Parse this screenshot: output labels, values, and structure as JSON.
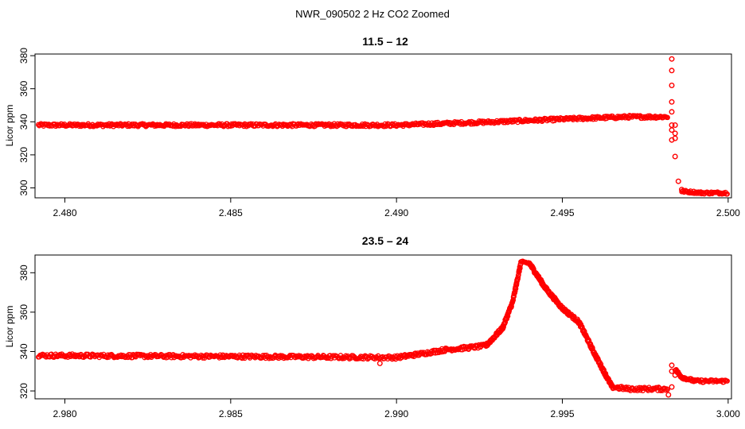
{
  "figure": {
    "title": "NWR_090502  2 Hz CO2 Zoomed"
  },
  "colors": {
    "points": "#ff0000",
    "axis": "#000000",
    "background": "#ffffff"
  },
  "chart_data": [
    {
      "type": "scatter",
      "title": "11.5 – 12",
      "xlabel": "",
      "ylabel": "Licor ppm",
      "xlim": [
        2.4791,
        2.5001
      ],
      "ylim": [
        294,
        381
      ],
      "xticks": [
        {
          "value": 2.48,
          "label": "2.480"
        },
        {
          "value": 2.485,
          "label": "2.485"
        },
        {
          "value": 2.49,
          "label": "2.490"
        },
        {
          "value": 2.495,
          "label": "2.495"
        },
        {
          "value": 2.5,
          "label": "2.500"
        }
      ],
      "yticks": [
        {
          "value": 300,
          "label": "300"
        },
        {
          "value": 320,
          "label": "320"
        },
        {
          "value": 340,
          "label": "340"
        },
        {
          "value": 360,
          "label": "360"
        },
        {
          "value": 380,
          "label": "380"
        }
      ],
      "series": [
        {
          "marker": "open-circle",
          "color": "#ff0000",
          "trend": [
            [
              2.4792,
              338
            ],
            [
              2.485,
              338
            ],
            [
              2.49,
              338
            ],
            [
              2.493,
              340
            ],
            [
              2.4955,
              342
            ],
            [
              2.497,
              343
            ],
            [
              2.4982,
              343
            ]
          ],
          "points": [
            [
              2.4983,
              378
            ],
            [
              2.4983,
              371
            ],
            [
              2.4983,
              362
            ],
            [
              2.4983,
              352
            ],
            [
              2.4983,
              346
            ],
            [
              2.4983,
              338
            ],
            [
              2.4983,
              335
            ],
            [
              2.4983,
              329
            ],
            [
              2.4984,
              338
            ],
            [
              2.4984,
              333
            ],
            [
              2.4984,
              330
            ],
            [
              2.4984,
              319
            ],
            [
              2.4985,
              304
            ],
            [
              2.4986,
              299
            ]
          ],
          "trend2": [
            [
              2.4986,
              298
            ],
            [
              2.4992,
              297
            ],
            [
              2.5,
              297
            ]
          ]
        }
      ]
    },
    {
      "type": "scatter",
      "title": "23.5 – 24",
      "xlabel": "",
      "ylabel": "Licor ppm",
      "xlim": [
        2.9791,
        3.0001
      ],
      "ylim": [
        316,
        389
      ],
      "xticks": [
        {
          "value": 2.98,
          "label": "2.980"
        },
        {
          "value": 2.985,
          "label": "2.985"
        },
        {
          "value": 2.99,
          "label": "2.990"
        },
        {
          "value": 2.995,
          "label": "2.995"
        },
        {
          "value": 3.0,
          "label": "3.000"
        }
      ],
      "yticks": [
        {
          "value": 320,
          "label": "320"
        },
        {
          "value": 340,
          "label": "340"
        },
        {
          "value": 360,
          "label": "360"
        },
        {
          "value": 380,
          "label": "380"
        }
      ],
      "series": [
        {
          "marker": "open-circle",
          "color": "#ff0000",
          "trend": [
            [
              2.9792,
              338
            ],
            [
              2.985,
              337.5
            ],
            [
              2.99,
              337
            ],
            [
              2.9908,
              339
            ],
            [
              2.9915,
              341
            ],
            [
              2.9922,
              342
            ],
            [
              2.9927,
              343
            ],
            [
              2.9932,
              352
            ],
            [
              2.9935,
              365
            ],
            [
              2.99375,
              385
            ],
            [
              2.994,
              385
            ],
            [
              2.9945,
              372
            ],
            [
              2.995,
              362
            ],
            [
              2.9955,
              355
            ],
            [
              2.996,
              338
            ],
            [
              2.9965,
              322
            ],
            [
              2.997,
              321
            ],
            [
              2.9982,
              321
            ]
          ],
          "points": [
            [
              2.9895,
              334
            ],
            [
              2.9982,
              318
            ],
            [
              2.9983,
              322
            ],
            [
              2.9983,
              333
            ],
            [
              2.9983,
              330
            ],
            [
              2.9984,
              328
            ]
          ],
          "trend2": [
            [
              2.9984,
              331
            ],
            [
              2.9986,
              327
            ],
            [
              2.999,
              325
            ],
            [
              3.0,
              325
            ]
          ]
        }
      ]
    }
  ]
}
